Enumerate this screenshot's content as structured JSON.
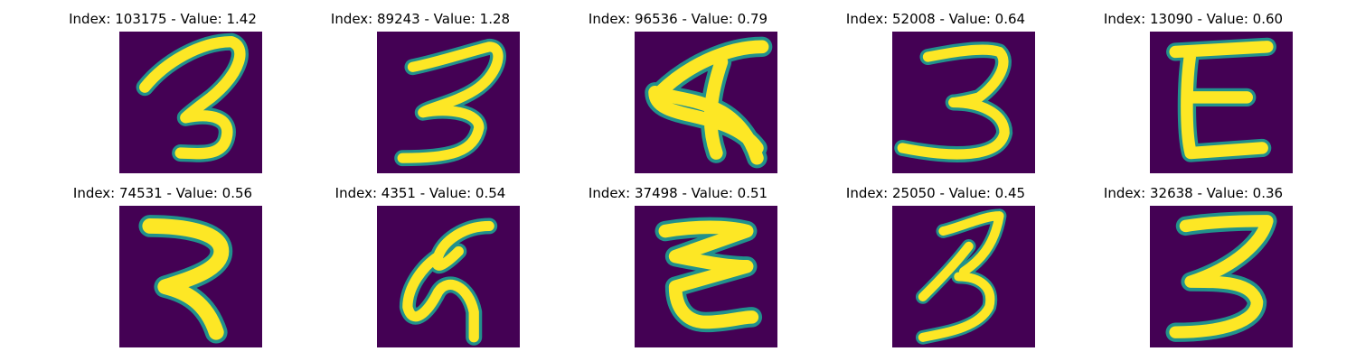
{
  "figure": {
    "panels": [
      {
        "title": "Index: 103175 - Value: 1.42",
        "glyph": "3"
      },
      {
        "title": "Index: 89243 - Value: 1.28",
        "glyph": "3"
      },
      {
        "title": "Index: 96536 - Value: 0.79",
        "glyph": "4"
      },
      {
        "title": "Index: 52008 - Value: 0.64",
        "glyph": "3"
      },
      {
        "title": "Index: 13090 - Value: 0.60",
        "glyph": "E"
      },
      {
        "title": "Index: 74531 - Value: 0.56",
        "glyph": "7"
      },
      {
        "title": "Index: 4351 - Value: 0.54",
        "glyph": "5"
      },
      {
        "title": "Index: 37498 - Value: 0.51",
        "glyph": "3"
      },
      {
        "title": "Index: 25050 - Value: 0.45",
        "glyph": "3"
      },
      {
        "title": "Index: 32638 - Value: 0.36",
        "glyph": "3"
      }
    ],
    "colors": {
      "background": "#440154",
      "stroke_edge": "#21918c",
      "stroke_core": "#fde725"
    }
  }
}
